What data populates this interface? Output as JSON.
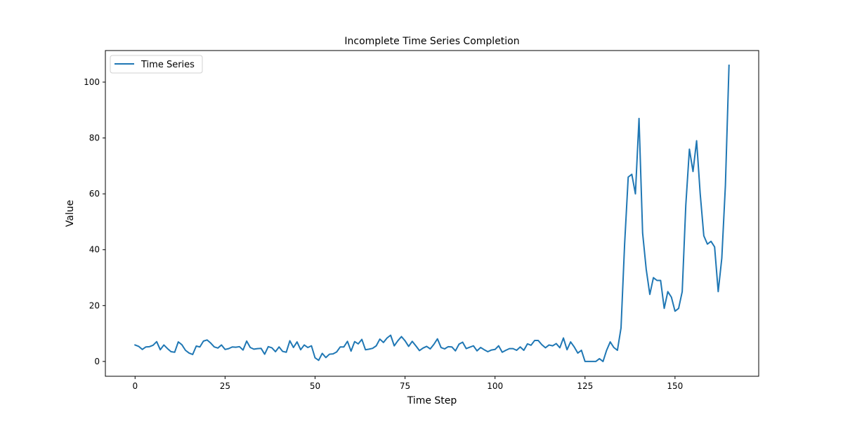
{
  "chart_data": {
    "type": "line",
    "title": "Incomplete Time Series Completion",
    "xlabel": "Time Step",
    "ylabel": "Value",
    "xlim": [
      -8.25,
      173.25
    ],
    "ylim": [
      -5.3,
      111.3
    ],
    "xticks": [
      0,
      25,
      50,
      75,
      100,
      125,
      150
    ],
    "yticks": [
      0,
      20,
      40,
      60,
      80,
      100
    ],
    "grid": false,
    "legend_position": "top-left",
    "series": [
      {
        "name": "Time Series",
        "color": "#1f77b4",
        "x_start": 0,
        "values": [
          5.9,
          5.4,
          4.3,
          5.2,
          5.3,
          5.8,
          7.1,
          4.2,
          5.9,
          4.6,
          3.5,
          3.3,
          7.0,
          6.0,
          4.0,
          3.0,
          2.5,
          5.5,
          5.2,
          7.3,
          7.7,
          6.6,
          5.2,
          4.8,
          5.9,
          4.3,
          4.6,
          5.2,
          5.1,
          5.3,
          4.1,
          7.3,
          5.0,
          4.4,
          4.6,
          4.7,
          2.6,
          5.3,
          4.9,
          3.5,
          5.2,
          3.6,
          3.3,
          7.4,
          5.0,
          7.0,
          4.2,
          5.9,
          5.0,
          5.6,
          1.3,
          0.4,
          2.9,
          1.4,
          2.6,
          2.7,
          3.4,
          5.2,
          5.2,
          7.2,
          3.7,
          7.1,
          6.3,
          7.9,
          4.2,
          4.4,
          4.7,
          5.6,
          8.0,
          6.8,
          8.4,
          9.4,
          5.6,
          7.4,
          8.9,
          7.4,
          5.4,
          7.2,
          5.6,
          3.9,
          4.8,
          5.4,
          4.5,
          6.1,
          8.1,
          5.0,
          4.5,
          5.3,
          5.2,
          3.8,
          6.2,
          6.9,
          4.6,
          5.1,
          5.6,
          3.8,
          5.0,
          4.2,
          3.5,
          4.1,
          4.3,
          5.6,
          3.3,
          4.0,
          4.6,
          4.6,
          4.0,
          5.2,
          4.0,
          6.3,
          5.8,
          7.5,
          7.5,
          6.0,
          4.9,
          5.9,
          5.6,
          6.4,
          4.9,
          8.4,
          4.2,
          7.0,
          5.2,
          3.0,
          4.0,
          0.0,
          0.0,
          0.0,
          0.0,
          1.0,
          0.0,
          4.0,
          7.0,
          5.0,
          4.0,
          12.0,
          42.0,
          66.0,
          67.0,
          60.0,
          87.0,
          46.0,
          33.0,
          24.0,
          30.0,
          29.0,
          29.0,
          19.0,
          25.0,
          23.0,
          18.0,
          19.0,
          25.0,
          56.0,
          76.0,
          68.0,
          79.0,
          60.0,
          45.0,
          42.0,
          43.0,
          41.0,
          25.0,
          37.0,
          63.0,
          106.0
        ]
      }
    ]
  }
}
